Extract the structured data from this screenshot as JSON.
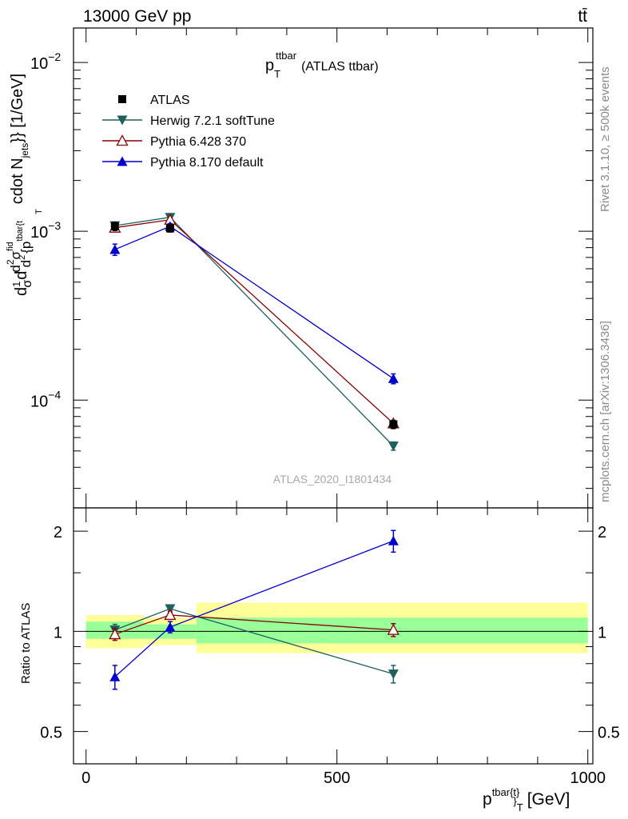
{
  "header": {
    "energy_label": "13000 GeV pp",
    "process_label": "tt̄"
  },
  "side_labels": {
    "rivet": "Rivet 3.1.10, ≥ 500k events",
    "mcplots": "mcplots.cern.ch [arXiv:1306.3436]"
  },
  "watermark": "ATLAS_2020_I1801434",
  "chart_data": [
    {
      "type": "line",
      "title": "p",
      "title_sub": "T",
      "title_sup": "ttbar",
      "title_suffix": "(ATLAS ttbar)",
      "yscale": "log",
      "ylim": [
        2.3e-05,
        0.016
      ],
      "xlim": [
        -25,
        1010
      ],
      "ylabel_parts": [
        "d",
        "1",
        "σ",
        "d",
        "d",
        "2",
        "σ",
        "fid",
        "d",
        "2",
        "{p",
        "tbar{t",
        "T",
        "cdot N",
        "jets",
        "}} [1/GeV]"
      ],
      "yticks": [
        {
          "value": 0.01,
          "base": "10",
          "exp": "−2"
        },
        {
          "value": 0.001,
          "base": "10",
          "exp": "−3"
        },
        {
          "value": 0.0001,
          "base": "10",
          "exp": "−4"
        }
      ],
      "series": [
        {
          "name": "ATLAS",
          "color": "#000000",
          "marker": "square",
          "x": [
            57.5,
            167.5,
            612.5
          ],
          "y": [
            0.00107,
            0.00104,
            7.18e-05
          ],
          "err": [
            6e-05,
            5e-05,
            4e-06
          ]
        },
        {
          "name": "Herwig 7.2.1 softTune",
          "color": "#1f5f5f",
          "marker": "triangle-down",
          "x": [
            57.5,
            167.5,
            612.5
          ],
          "y": [
            0.00108,
            0.00121,
            5.35e-05
          ],
          "err": [
            5e-05,
            4e-05,
            3e-06
          ]
        },
        {
          "name": "Pythia 6.428 370",
          "color": "#8b0000",
          "marker": "triangle-up-open",
          "x": [
            57.5,
            167.5,
            612.5
          ],
          "y": [
            0.00105,
            0.00117,
            7.28e-05
          ],
          "err": [
            5e-05,
            4e-05,
            3e-06
          ]
        },
        {
          "name": "Pythia 8.170 default",
          "color": "#0000cc",
          "marker": "triangle-up",
          "x": [
            57.5,
            167.5,
            612.5
          ],
          "y": [
            0.00078,
            0.00107,
            0.000134
          ],
          "err": [
            6e-05,
            4e-05,
            9e-06
          ]
        }
      ]
    },
    {
      "type": "line",
      "ylabel": "Ratio to ATLAS",
      "xlabel": "p",
      "xlabel_sup": "tbar{t}",
      "xlabel_sub": "}",
      "xlabel_sub2": "T",
      "xlabel_unit": "[GeV]",
      "yscale": "log",
      "ylim": [
        0.4,
        2.35
      ],
      "xlim": [
        -25,
        1010
      ],
      "xticks": [
        0,
        500,
        1000
      ],
      "yticks": [
        0.5,
        1,
        2
      ],
      "reference": 1,
      "bands": [
        {
          "x0": 0,
          "x1": 115,
          "yellow": [
            0.89,
            1.12
          ],
          "green": [
            0.95,
            1.07
          ]
        },
        {
          "x0": 115,
          "x1": 220,
          "yellow": [
            0.91,
            1.1
          ],
          "green": [
            0.95,
            1.05
          ]
        },
        {
          "x0": 220,
          "x1": 1000,
          "yellow": [
            0.86,
            1.22
          ],
          "green": [
            0.92,
            1.1
          ]
        }
      ],
      "series": [
        {
          "name": "Herwig 7.2.1 softTune",
          "x": [
            57.5,
            167.5,
            612.5
          ],
          "y": [
            1.01,
            1.17,
            0.745
          ],
          "err": [
            0.04,
            0.03,
            0.045
          ]
        },
        {
          "name": "Pythia 6.428 370",
          "x": [
            57.5,
            167.5,
            612.5
          ],
          "y": [
            0.98,
            1.12,
            1.01
          ],
          "err": [
            0.04,
            0.03,
            0.045
          ]
        },
        {
          "name": "Pythia 8.170 default",
          "x": [
            57.5,
            167.5,
            612.5
          ],
          "y": [
            0.73,
            1.03,
            1.87
          ],
          "err": [
            0.06,
            0.04,
            0.14
          ]
        }
      ]
    }
  ]
}
